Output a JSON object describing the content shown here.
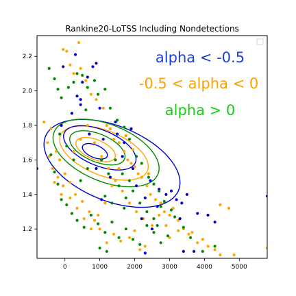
{
  "chart_data": {
    "type": "scatter",
    "title": "Rankine20-LoTSS Including Nondetections",
    "xlabel": "",
    "ylabel": "",
    "xlim": [
      -800,
      5800
    ],
    "ylim": [
      1.03,
      2.32
    ],
    "xticks": [
      0,
      1000,
      2000,
      3000,
      4000,
      5000
    ],
    "xtick_labels": [
      "0",
      "1000",
      "2000",
      "3000",
      "4000",
      "5000"
    ],
    "yticks": [
      1.2,
      1.4,
      1.6,
      1.8,
      2.0,
      2.2
    ],
    "ytick_labels": [
      "1.2",
      "1.4",
      "1.6",
      "1.8",
      "2.0",
      "2.2"
    ],
    "grid": false,
    "legend": "empty box, top-right",
    "annotations": [
      {
        "text": "alpha < -0.5",
        "color": "#1f3fd6"
      },
      {
        "text": "-0.5 < alpha < 0",
        "color": "#ff9f00"
      },
      {
        "text": "alpha > 0",
        "color": "#16d016"
      }
    ],
    "series": [
      {
        "color": "#0000cc",
        "points": [
          [
            -50,
            2.14
          ],
          [
            300,
            2.21
          ],
          [
            500,
            2.05
          ],
          [
            650,
            2.08
          ],
          [
            800,
            2.14
          ],
          [
            900,
            2.16
          ],
          [
            350,
            1.97
          ],
          [
            450,
            1.92
          ],
          [
            1000,
            1.9
          ],
          [
            1450,
            1.82
          ],
          [
            1500,
            1.75
          ],
          [
            1700,
            1.7
          ],
          [
            1900,
            1.78
          ],
          [
            1650,
            1.62
          ],
          [
            1950,
            1.55
          ],
          [
            2050,
            1.45
          ],
          [
            2300,
            1.38
          ],
          [
            2450,
            1.48
          ],
          [
            2700,
            1.43
          ],
          [
            2650,
            1.33
          ],
          [
            2900,
            1.4
          ],
          [
            3050,
            1.42
          ],
          [
            3200,
            1.37
          ],
          [
            3350,
            1.35
          ],
          [
            3500,
            1.4
          ],
          [
            3800,
            1.29
          ],
          [
            4100,
            1.28
          ],
          [
            4300,
            1.24
          ],
          [
            3400,
            1.07
          ],
          [
            3700,
            1.07
          ],
          [
            2300,
            1.06
          ],
          [
            1050,
            1.37
          ],
          [
            5800,
            1.39
          ],
          [
            -800,
            1.55
          ],
          [
            -100,
            1.8
          ],
          [
            200,
            1.87
          ]
        ]
      },
      {
        "color": "#ffa500",
        "points": [
          [
            -600,
            1.82
          ],
          [
            -500,
            1.7
          ],
          [
            -450,
            1.62
          ],
          [
            -350,
            1.55
          ],
          [
            -300,
            1.47
          ],
          [
            -200,
            1.5
          ],
          [
            -100,
            1.4
          ],
          [
            -50,
            2.24
          ],
          [
            50,
            2.23
          ],
          [
            150,
            2.15
          ],
          [
            250,
            2.1
          ],
          [
            400,
            2.28
          ],
          [
            450,
            2.13
          ],
          [
            600,
            2.06
          ],
          [
            750,
            1.98
          ],
          [
            900,
            1.95
          ],
          [
            1100,
            1.9
          ],
          [
            1200,
            1.8
          ],
          [
            1300,
            1.78
          ],
          [
            1400,
            1.72
          ],
          [
            1550,
            1.7
          ],
          [
            1700,
            1.65
          ],
          [
            1800,
            1.6
          ],
          [
            1900,
            1.58
          ],
          [
            2000,
            1.56
          ],
          [
            2100,
            1.52
          ],
          [
            2200,
            1.5
          ],
          [
            2350,
            1.45
          ],
          [
            2450,
            1.4
          ],
          [
            2600,
            1.37
          ],
          [
            2750,
            1.35
          ],
          [
            2850,
            1.3
          ],
          [
            3000,
            1.28
          ],
          [
            3100,
            1.32
          ],
          [
            3250,
            1.25
          ],
          [
            3400,
            1.2
          ],
          [
            3550,
            1.17
          ],
          [
            3650,
            1.18
          ],
          [
            3800,
            1.12
          ],
          [
            3950,
            1.14
          ],
          [
            4100,
            1.1
          ],
          [
            4300,
            1.08
          ],
          [
            4450,
            1.05
          ],
          [
            4700,
            1.32
          ],
          [
            4850,
            1.05
          ],
          [
            5800,
            1.09
          ],
          [
            3000,
            1.15
          ],
          [
            3250,
            1.19
          ],
          [
            2300,
            1.1
          ],
          [
            2150,
            1.08
          ],
          [
            2000,
            1.19
          ],
          [
            1850,
            1.15
          ],
          [
            1600,
            1.13
          ],
          [
            1400,
            1.17
          ],
          [
            1200,
            1.12
          ],
          [
            1000,
            1.2
          ],
          [
            850,
            1.25
          ],
          [
            700,
            1.3
          ],
          [
            500,
            1.36
          ],
          [
            300,
            1.4
          ],
          [
            150,
            1.47
          ],
          [
            0,
            1.52
          ],
          [
            -150,
            1.6
          ],
          [
            250,
            1.65
          ],
          [
            450,
            1.72
          ],
          [
            650,
            1.8
          ],
          [
            850,
            1.7
          ],
          [
            1050,
            1.62
          ],
          [
            1250,
            1.55
          ],
          [
            1450,
            1.48
          ],
          [
            1650,
            1.42
          ],
          [
            1850,
            1.35
          ],
          [
            2050,
            1.3
          ],
          [
            2250,
            1.26
          ],
          [
            2500,
            1.22
          ],
          [
            2700,
            1.28
          ],
          [
            2900,
            1.22
          ],
          [
            2400,
            1.52
          ],
          [
            2200,
            1.58
          ],
          [
            1950,
            1.66
          ],
          [
            1750,
            1.74
          ],
          [
            1550,
            1.55
          ],
          [
            1350,
            1.45
          ],
          [
            1150,
            1.35
          ],
          [
            950,
            1.28
          ],
          [
            750,
            1.2
          ],
          [
            550,
            1.26
          ],
          [
            350,
            1.32
          ],
          [
            150,
            1.38
          ],
          [
            -50,
            1.45
          ],
          [
            -250,
            1.65
          ],
          [
            -400,
            1.78
          ],
          [
            4450,
            1.34
          ]
        ]
      },
      {
        "color": "#008800",
        "points": [
          [
            -450,
            2.13
          ],
          [
            -300,
            2.07
          ],
          [
            -200,
            2.01
          ],
          [
            -100,
            1.96
          ],
          [
            100,
            2.02
          ],
          [
            250,
            2.05
          ],
          [
            350,
            2.1
          ],
          [
            500,
            2.09
          ],
          [
            650,
            2.02
          ],
          [
            950,
            1.98
          ],
          [
            1150,
            2.01
          ],
          [
            1300,
            1.9
          ],
          [
            1500,
            1.83
          ],
          [
            1700,
            1.79
          ],
          [
            1850,
            1.72
          ],
          [
            2050,
            1.62
          ],
          [
            2200,
            1.58
          ],
          [
            2400,
            1.5
          ],
          [
            2550,
            1.46
          ],
          [
            2700,
            1.42
          ],
          [
            2850,
            1.36
          ],
          [
            3050,
            1.31
          ],
          [
            3150,
            1.27
          ],
          [
            -400,
            1.63
          ],
          [
            -300,
            1.53
          ],
          [
            -200,
            1.46
          ],
          [
            -100,
            1.37
          ],
          [
            50,
            1.34
          ],
          [
            200,
            1.29
          ],
          [
            350,
            1.25
          ],
          [
            550,
            1.21
          ],
          [
            750,
            1.28
          ],
          [
            950,
            1.23
          ],
          [
            1150,
            1.18
          ],
          [
            1350,
            1.24
          ],
          [
            1550,
            1.15
          ],
          [
            1750,
            1.2
          ],
          [
            1950,
            1.14
          ],
          [
            2150,
            1.11
          ],
          [
            2350,
            1.22
          ],
          [
            2550,
            1.18
          ],
          [
            2750,
            1.12
          ],
          [
            2950,
            1.16
          ],
          [
            3950,
            1.07
          ],
          [
            4300,
            1.1
          ],
          [
            1150,
            1.39
          ],
          [
            1350,
            1.35
          ],
          [
            1550,
            1.45
          ],
          [
            1750,
            1.38
          ],
          [
            1950,
            1.42
          ],
          [
            2150,
            1.35
          ],
          [
            2350,
            1.3
          ],
          [
            2550,
            1.26
          ],
          [
            1050,
            1.6
          ],
          [
            1250,
            1.52
          ],
          [
            1450,
            1.6
          ],
          [
            1650,
            1.52
          ],
          [
            1850,
            1.48
          ],
          [
            650,
            1.55
          ],
          [
            450,
            1.48
          ],
          [
            250,
            1.6
          ],
          [
            50,
            1.68
          ],
          [
            -150,
            1.75
          ],
          [
            850,
            2.06
          ],
          [
            600,
            1.89
          ],
          [
            2650,
            1.22
          ],
          [
            1000,
            1.09
          ],
          [
            1200,
            1.07
          ],
          [
            1700,
            1.32
          ],
          [
            3400,
            1.21
          ],
          [
            2750,
            1.33
          ],
          [
            3600,
            1.15
          ]
        ]
      },
      {
        "color": "#0000cc",
        "points": [
          [
            450,
            1.95
          ],
          [
            700,
            1.75
          ],
          [
            900,
            1.55
          ],
          [
            1300,
            1.5
          ],
          [
            2200,
            1.26
          ],
          [
            2500,
            1.2
          ],
          [
            3300,
            1.26
          ],
          [
            1100,
            1.72
          ]
        ]
      }
    ],
    "contours": [
      {
        "color": "#0000cc",
        "cx": 1350,
        "cy": 1.58,
        "rx": 2050,
        "ry": 0.21,
        "angle": -0.37
      },
      {
        "color": "#008800",
        "cx": 1180,
        "cy": 1.64,
        "rx": 1600,
        "ry": 0.16,
        "angle": -0.37
      },
      {
        "color": "#ffa500",
        "cx": 1120,
        "cy": 1.64,
        "rx": 1340,
        "ry": 0.125,
        "angle": -0.37
      },
      {
        "color": "#0000cc",
        "cx": 1000,
        "cy": 1.67,
        "rx": 1100,
        "ry": 0.1,
        "angle": -0.38
      },
      {
        "color": "#008800",
        "cx": 930,
        "cy": 1.67,
        "rx": 840,
        "ry": 0.078,
        "angle": -0.38
      },
      {
        "color": "#ffa500",
        "cx": 880,
        "cy": 1.66,
        "rx": 600,
        "ry": 0.055,
        "angle": -0.38
      },
      {
        "color": "#0000cc",
        "cx": 860,
        "cy": 1.65,
        "rx": 380,
        "ry": 0.035,
        "angle": -0.38
      }
    ]
  }
}
